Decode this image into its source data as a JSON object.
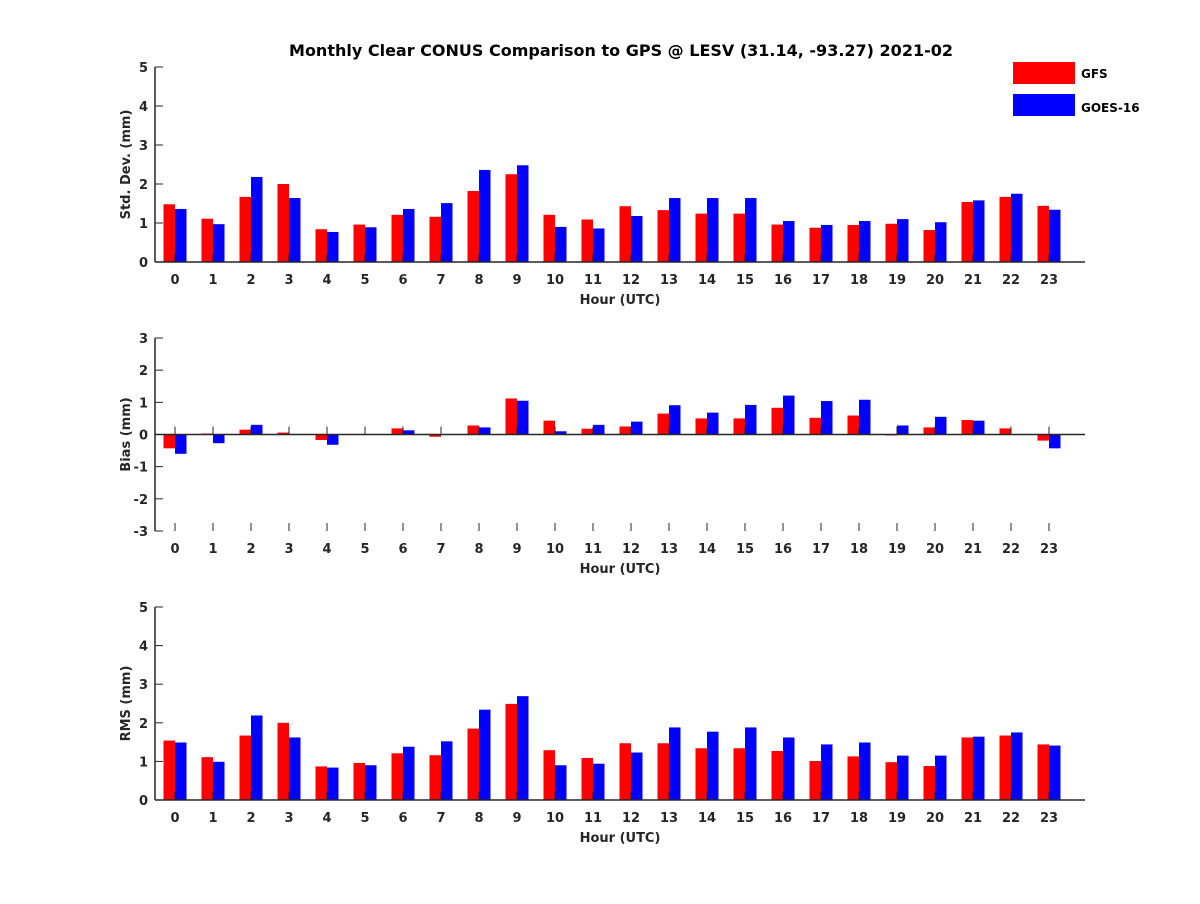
{
  "title": "Monthly Clear CONUS Comparison to GPS @ LESV (31.14, -93.27) 2021-02",
  "legend": [
    {
      "label": "GFS",
      "color": "#ff0000"
    },
    {
      "label": "GOES-16",
      "color": "#0000ff"
    }
  ],
  "colors": {
    "gfs": "#ff0000",
    "goes": "#0000ff",
    "axis": "#262626"
  },
  "chart_data": [
    {
      "type": "bar",
      "xlabel": "Hour (UTC)",
      "ylabel": "Std. Dev. (mm)",
      "ylim": [
        0,
        5
      ],
      "yticks": [
        0,
        1,
        2,
        3,
        4,
        5
      ],
      "categories": [
        "0",
        "1",
        "2",
        "3",
        "4",
        "5",
        "6",
        "7",
        "8",
        "9",
        "10",
        "11",
        "12",
        "13",
        "14",
        "15",
        "16",
        "17",
        "18",
        "19",
        "20",
        "21",
        "22",
        "23"
      ],
      "series": [
        {
          "name": "GFS",
          "values": [
            1.48,
            1.11,
            1.67,
            2.0,
            0.84,
            0.96,
            1.21,
            1.16,
            1.82,
            2.25,
            1.21,
            1.09,
            1.43,
            1.33,
            1.24,
            1.24,
            0.96,
            0.88,
            0.95,
            0.98,
            0.82,
            1.54,
            1.67,
            1.44
          ]
        },
        {
          "name": "GOES-16",
          "values": [
            1.36,
            0.97,
            2.18,
            1.64,
            0.77,
            0.89,
            1.36,
            1.51,
            2.36,
            2.48,
            0.9,
            0.86,
            1.18,
            1.64,
            1.64,
            1.64,
            1.05,
            0.95,
            1.05,
            1.1,
            1.02,
            1.58,
            1.75,
            1.34
          ]
        }
      ]
    },
    {
      "type": "bar",
      "xlabel": "Hour (UTC)",
      "ylabel": "Bias (mm)",
      "ylim": [
        -3,
        3
      ],
      "yticks": [
        -3,
        -2,
        -1,
        0,
        1,
        2,
        3
      ],
      "categories": [
        "0",
        "1",
        "2",
        "3",
        "4",
        "5",
        "6",
        "7",
        "8",
        "9",
        "10",
        "11",
        "12",
        "13",
        "14",
        "15",
        "16",
        "17",
        "18",
        "19",
        "20",
        "21",
        "22",
        "23"
      ],
      "series": [
        {
          "name": "GFS",
          "values": [
            -0.43,
            0.03,
            0.15,
            0.06,
            -0.17,
            0.0,
            0.19,
            -0.07,
            0.28,
            1.12,
            0.43,
            0.18,
            0.25,
            0.65,
            0.5,
            0.5,
            0.83,
            0.52,
            0.59,
            -0.03,
            0.22,
            0.45,
            0.19,
            -0.19
          ]
        },
        {
          "name": "GOES-16",
          "values": [
            -0.6,
            -0.27,
            0.3,
            0.0,
            -0.32,
            0.0,
            0.13,
            0.0,
            0.22,
            1.05,
            0.1,
            0.3,
            0.4,
            0.91,
            0.68,
            0.92,
            1.21,
            1.04,
            1.08,
            0.28,
            0.55,
            0.43,
            0.0,
            -0.43
          ]
        }
      ]
    },
    {
      "type": "bar",
      "xlabel": "Hour (UTC)",
      "ylabel": "RMS (mm)",
      "ylim": [
        0,
        5
      ],
      "yticks": [
        0,
        1,
        2,
        3,
        4,
        5
      ],
      "categories": [
        "0",
        "1",
        "2",
        "3",
        "4",
        "5",
        "6",
        "7",
        "8",
        "9",
        "10",
        "11",
        "12",
        "13",
        "14",
        "15",
        "16",
        "17",
        "18",
        "19",
        "20",
        "21",
        "22",
        "23"
      ],
      "series": [
        {
          "name": "GFS",
          "values": [
            1.54,
            1.11,
            1.67,
            2.0,
            0.87,
            0.96,
            1.21,
            1.16,
            1.85,
            2.49,
            1.29,
            1.09,
            1.47,
            1.47,
            1.34,
            1.34,
            1.27,
            1.01,
            1.13,
            0.98,
            0.88,
            1.62,
            1.67,
            1.44
          ]
        },
        {
          "name": "GOES-16",
          "values": [
            1.49,
            0.99,
            2.19,
            1.62,
            0.84,
            0.9,
            1.38,
            1.52,
            2.34,
            2.69,
            0.9,
            0.94,
            1.23,
            1.88,
            1.77,
            1.88,
            1.62,
            1.44,
            1.49,
            1.15,
            1.15,
            1.64,
            1.75,
            1.41
          ]
        }
      ]
    }
  ]
}
